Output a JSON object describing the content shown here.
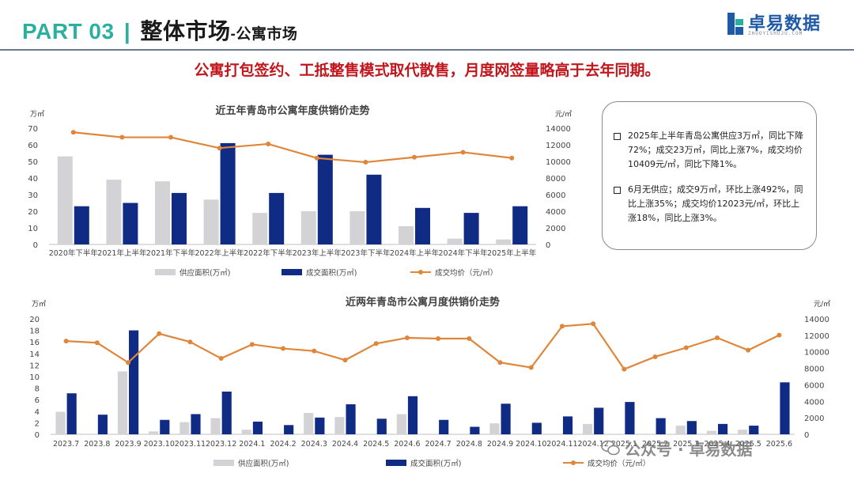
{
  "header": {
    "part": "PART 03",
    "divider": "|",
    "section": "整体市场",
    "subsection": "-公寓市场",
    "logo_text": "卓易数据",
    "logo_sub": "ZHUOYISHUJU.COM"
  },
  "headline": "公寓打包签约、工抵整售模式取代散售，月度网签量略高于去年同期。",
  "notes": [
    "2025年上半年青岛公寓供应3万㎡，同比下降72%；成交23万㎡，同比上涨7%，成交均价10409元/㎡，同比下降1%。",
    "6月无供应；成交9万㎡，环比上涨492%，同比上涨35%；成交均价12023元/㎡，环比上涨18%，同比上涨3%。"
  ],
  "watermark": "公众号 · 卓易数据",
  "colors": {
    "supply": "#d3d3d5",
    "deal": "#0f2b83",
    "price": "#e0863a",
    "teal": "#2bb0a0",
    "red": "#c0161c"
  },
  "chart_data": [
    {
      "type": "bar",
      "title": "近五年青岛市公寓年度供销价走势",
      "left_unit": "万㎡",
      "right_unit": "元/㎡",
      "categories": [
        "2020年下半年",
        "2021年上半年",
        "2021年下半年",
        "2022年上半年",
        "2022年下半年",
        "2023年上半年",
        "2023年下半年",
        "2024年上半年",
        "2024年下半年",
        "2025年上半年"
      ],
      "series": [
        {
          "name": "供应面积(万㎡)",
          "kind": "bar",
          "axis": "left",
          "values": [
            53,
            39,
            38,
            27,
            19,
            20,
            20,
            11,
            3.5,
            3
          ]
        },
        {
          "name": "成交面积(万㎡)",
          "kind": "bar",
          "axis": "left",
          "values": [
            23,
            25,
            31,
            61,
            31,
            54,
            42,
            22,
            19,
            23
          ]
        },
        {
          "name": "成交均价（元/㎡）",
          "kind": "line",
          "axis": "right",
          "values": [
            13500,
            12900,
            12900,
            11600,
            12100,
            10400,
            9900,
            10500,
            11100,
            10409
          ]
        }
      ],
      "ylim_left": [
        0,
        70
      ],
      "yticks_left": [
        "0",
        "10",
        "20",
        "30",
        "40",
        "50",
        "60",
        "70"
      ],
      "ylim_right": [
        0,
        14000
      ],
      "yticks_right": [
        "0",
        "2000",
        "4000",
        "6000",
        "8000",
        "10000",
        "12000",
        "14000"
      ],
      "legend": "bottom"
    },
    {
      "type": "bar",
      "title": "近两年青岛市公寓月度供销价走势",
      "left_unit": "万㎡",
      "right_unit": "元/㎡",
      "categories": [
        "2023.7",
        "2023.8",
        "2023.9",
        "2023.10",
        "2023.11",
        "2023.12",
        "2024.1",
        "2024.2",
        "2024.3",
        "2024.4",
        "2024.5",
        "2024.6",
        "2024.7",
        "2024.8",
        "2024.9",
        "2024.10",
        "2024.11",
        "2024.12",
        "2025.1",
        "2025.2",
        "2025.3",
        "2025.4",
        "2025.5",
        "2025.6"
      ],
      "series": [
        {
          "name": "供应面积(万㎡)",
          "kind": "bar",
          "axis": "left",
          "values": [
            3.9,
            0,
            10.9,
            0.5,
            2.1,
            2.8,
            0.8,
            0,
            3.7,
            3.0,
            0,
            3.5,
            0,
            0,
            1.9,
            0,
            0,
            1.8,
            0,
            0,
            1.5,
            0.6,
            0.8,
            0
          ]
        },
        {
          "name": "成交面积(万㎡)",
          "kind": "bar",
          "axis": "left",
          "values": [
            7.1,
            3.4,
            18.0,
            2.5,
            3.5,
            7.4,
            2.2,
            1.6,
            2.9,
            5.2,
            2.7,
            6.6,
            2.5,
            1.3,
            5.3,
            2.0,
            3.1,
            4.6,
            5.6,
            2.8,
            2.3,
            1.8,
            1.5,
            9.0
          ]
        },
        {
          "name": "成交均价（元/㎡）",
          "kind": "line",
          "axis": "right",
          "values": [
            11300,
            11100,
            8700,
            12200,
            11200,
            9200,
            10900,
            10400,
            10100,
            9000,
            11000,
            11700,
            11600,
            11600,
            8700,
            8100,
            13100,
            13400,
            7900,
            9400,
            10500,
            11700,
            10200,
            12023
          ]
        }
      ],
      "ylim_left": [
        0,
        20
      ],
      "yticks_left": [
        "0",
        "2",
        "4",
        "6",
        "8",
        "10",
        "12",
        "14",
        "16",
        "18",
        "20"
      ],
      "ylim_right": [
        0,
        14000
      ],
      "yticks_right": [
        "0",
        "2000",
        "4000",
        "6000",
        "8000",
        "10000",
        "12000",
        "14000"
      ],
      "legend": "bottom"
    }
  ]
}
